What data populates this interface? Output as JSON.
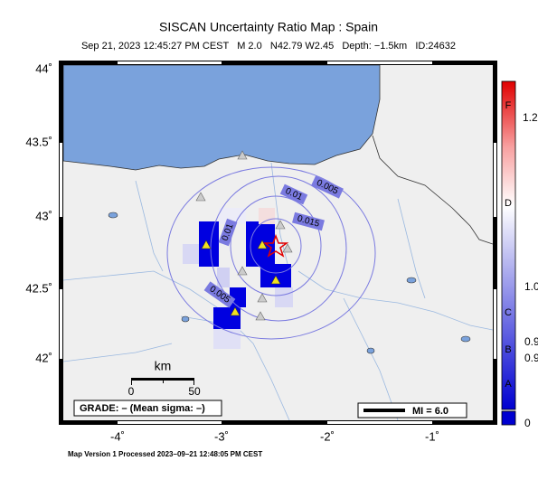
{
  "header": {
    "title": "SISCAN Uncertainty Ratio Map : Spain",
    "subtitle": "Sep 21, 2023 12:45:27 PM CEST   M 2.0   N42.79 W2.45   Depth: −1.5km   ID:24632"
  },
  "axes": {
    "lat_labels": [
      "44˚",
      "43.5˚",
      "43˚",
      "42.5˚",
      "42˚"
    ],
    "lon_labels": [
      "-4˚",
      "-3˚",
      "-2˚",
      "-1˚"
    ]
  },
  "contours": [
    "0.01",
    "0.005",
    "0.015",
    "0.01",
    "0.005"
  ],
  "scale": {
    "unit": "km",
    "labels": [
      "0",
      "50"
    ]
  },
  "grade": "GRADE: – (Mean sigma: –)",
  "magnitude_legend": "MI = 6.0",
  "colorbar": {
    "letters": [
      "F",
      "D",
      "C",
      "B",
      "A"
    ],
    "values": [
      "1.2",
      "1.0",
      "0.9",
      "0.9",
      "0"
    ]
  },
  "footer": "Map Version 1 Processed 2023–09–21 12:48:05 PM CEST"
}
